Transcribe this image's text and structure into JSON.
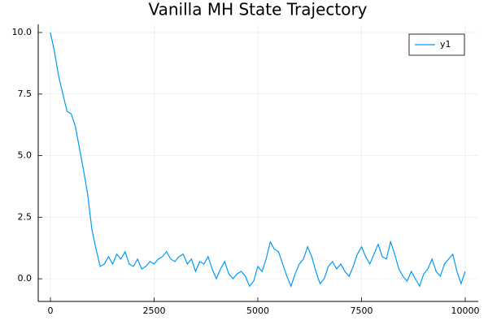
{
  "chart_data": {
    "type": "line",
    "title": "Vanilla MH State Trajectory",
    "x": [
      0,
      100,
      200,
      300,
      400,
      500,
      600,
      700,
      800,
      900,
      1000,
      1100,
      1200,
      1300,
      1400,
      1500,
      1600,
      1700,
      1800,
      1900,
      2000,
      2100,
      2200,
      2300,
      2400,
      2500,
      2600,
      2700,
      2800,
      2900,
      3000,
      3100,
      3200,
      3300,
      3400,
      3500,
      3600,
      3700,
      3800,
      3900,
      4000,
      4100,
      4200,
      4300,
      4400,
      4500,
      4600,
      4700,
      4800,
      4900,
      5000,
      5100,
      5200,
      5300,
      5400,
      5500,
      5600,
      5700,
      5800,
      5900,
      6000,
      6100,
      6200,
      6300,
      6400,
      6500,
      6600,
      6700,
      6800,
      6900,
      7000,
      7100,
      7200,
      7300,
      7400,
      7500,
      7600,
      7700,
      7800,
      7900,
      8000,
      8100,
      8200,
      8300,
      8400,
      8500,
      8600,
      8700,
      8800,
      8900,
      9000,
      9100,
      9200,
      9300,
      9400,
      9500,
      9600,
      9700,
      9800,
      9900,
      10000
    ],
    "series": [
      {
        "name": "y1",
        "color": "#009af9",
        "values": [
          10,
          9.2,
          8.2,
          7.5,
          6.8,
          6.7,
          6.2,
          5.3,
          4.4,
          3.4,
          2.0,
          1.2,
          0.5,
          0.6,
          0.9,
          0.6,
          1.0,
          0.8,
          1.1,
          0.6,
          0.5,
          0.8,
          0.4,
          0.5,
          0.7,
          0.6,
          0.8,
          0.9,
          1.1,
          0.8,
          0.7,
          0.9,
          1.0,
          0.6,
          0.8,
          0.3,
          0.7,
          0.6,
          0.9,
          0.4,
          0.0,
          0.4,
          0.7,
          0.2,
          0.0,
          0.2,
          0.3,
          0.1,
          -0.3,
          -0.1,
          0.5,
          0.3,
          0.8,
          1.5,
          1.2,
          1.1,
          0.6,
          0.1,
          -0.3,
          0.2,
          0.6,
          0.8,
          1.3,
          0.9,
          0.3,
          -0.2,
          0.0,
          0.5,
          0.7,
          0.4,
          0.6,
          0.3,
          0.1,
          0.5,
          1.0,
          1.3,
          0.9,
          0.6,
          1.0,
          1.4,
          0.9,
          0.8,
          1.5,
          1.0,
          0.4,
          0.1,
          -0.1,
          0.3,
          0.0,
          -0.3,
          0.2,
          0.4,
          0.8,
          0.3,
          0.1,
          0.6,
          0.8,
          1.0,
          0.3,
          -0.2,
          0.3
        ]
      }
    ],
    "xlim": [
      -294,
      10314
    ],
    "xticks": [
      0,
      2500,
      5000,
      7500,
      10000
    ],
    "ylim": [
      -0.92,
      10.33
    ],
    "yticks": [
      {
        "value": 0,
        "label": "0.0"
      },
      2.5,
      {
        "value": 5,
        "label": "5.0"
      },
      7.5,
      {
        "value": 10,
        "label": "10.0"
      }
    ],
    "grid": true,
    "legend": "top-right"
  }
}
